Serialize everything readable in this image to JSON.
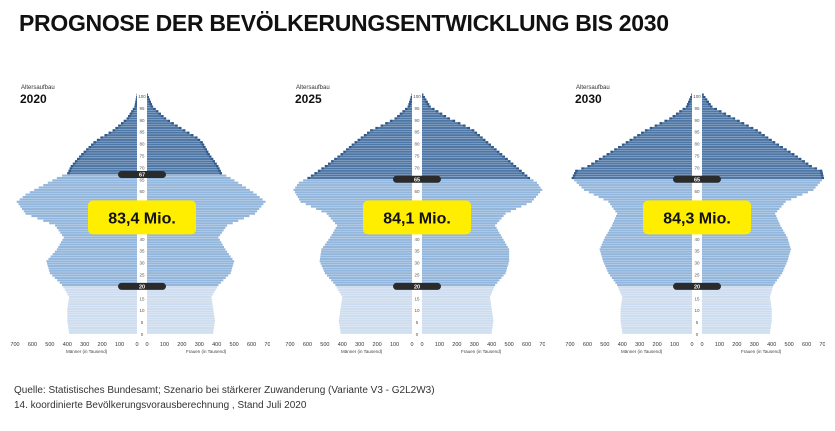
{
  "title": "PROGNOSE DER BEVÖLKERUNGSENTWICKLUNG BIS 2030",
  "source_lines": [
    "Quelle: Statistisches Bundesamt; Szenario bei stärkerer Zuwanderung (Variante V3 - G2L2W3)",
    "14. koordinierte Bevölkerungsvorausberechnung , Stand Juli 2020"
  ],
  "colors": {
    "dark_band": "#4f77a6",
    "dark_band_edge": "#2f5788",
    "mid_band": "#93b6dc",
    "light_band": "#cddcee",
    "axis_strip": "#ffffff",
    "badge_bg": "#ffee00",
    "marker_bg": "#2b2b2b"
  },
  "chart_data": [
    {
      "type": "population-pyramid",
      "year": "2020",
      "header_label": "Altersaufbau",
      "total_label": "83,4 Mio.",
      "age_ticks": [
        "100",
        "95",
        "90",
        "85",
        "80",
        "75",
        "70",
        "65",
        "60",
        "55",
        "50",
        "45",
        "40",
        "35",
        "30",
        "25",
        "20",
        "15",
        "10",
        "5",
        "0"
      ],
      "x_ticks": [
        "700",
        "600",
        "500",
        "400",
        "300",
        "200",
        "100",
        "0",
        "0",
        "100",
        "200",
        "300",
        "400",
        "500",
        "600",
        "700"
      ],
      "xlabel_left": "Männer (in Tausend)",
      "xlabel_right": "Frauen (in Tausend)",
      "markers": [
        "67",
        "20"
      ],
      "marker_ages": [
        67,
        20
      ],
      "xlim": [
        0,
        700
      ],
      "ages": [
        0,
        5,
        10,
        15,
        20,
        25,
        30,
        35,
        40,
        45,
        50,
        55,
        58,
        60,
        65,
        67,
        70,
        75,
        80,
        82,
        85,
        90,
        95,
        100
      ],
      "men": [
        390,
        400,
        400,
        390,
        430,
        500,
        520,
        460,
        420,
        470,
        640,
        690,
        640,
        590,
        460,
        400,
        380,
        320,
        250,
        210,
        140,
        60,
        15,
        2
      ],
      "women": [
        380,
        390,
        380,
        370,
        410,
        480,
        500,
        450,
        410,
        460,
        620,
        680,
        630,
        590,
        480,
        430,
        410,
        360,
        320,
        290,
        220,
        110,
        35,
        5
      ]
    },
    {
      "type": "population-pyramid",
      "year": "2025",
      "header_label": "Altersaufbau",
      "total_label": "84,1 Mio.",
      "age_ticks": [
        "100",
        "95",
        "90",
        "85",
        "80",
        "75",
        "70",
        "65",
        "60",
        "55",
        "50",
        "45",
        "40",
        "35",
        "30",
        "25",
        "20",
        "15",
        "10",
        "5",
        "0"
      ],
      "x_ticks": [
        "700",
        "600",
        "500",
        "400",
        "300",
        "200",
        "100",
        "0",
        "0",
        "100",
        "200",
        "300",
        "400",
        "500",
        "600",
        "700"
      ],
      "xlabel_left": "Männer (in Tausend)",
      "xlabel_right": "Frauen (in Tausend)",
      "markers": [
        "65",
        "20"
      ],
      "marker_ages": [
        65,
        20
      ],
      "xlim": [
        0,
        700
      ],
      "ages": [
        0,
        5,
        10,
        15,
        20,
        25,
        30,
        35,
        40,
        45,
        50,
        55,
        60,
        63,
        65,
        70,
        75,
        80,
        85,
        87,
        90,
        95,
        100
      ],
      "men": [
        410,
        420,
        410,
        400,
        440,
        500,
        530,
        520,
        470,
        430,
        490,
        640,
        680,
        650,
        600,
        500,
        410,
        330,
        240,
        180,
        100,
        25,
        3
      ],
      "women": [
        400,
        410,
        400,
        390,
        420,
        480,
        500,
        500,
        460,
        420,
        480,
        630,
        690,
        660,
        620,
        540,
        460,
        380,
        300,
        250,
        160,
        50,
        8
      ]
    },
    {
      "type": "population-pyramid",
      "year": "2030",
      "header_label": "Altersaufbau",
      "total_label": "84,3 Mio.",
      "age_ticks": [
        "100",
        "95",
        "90",
        "85",
        "80",
        "75",
        "70",
        "65",
        "60",
        "55",
        "50",
        "45",
        "40",
        "35",
        "30",
        "25",
        "20",
        "15",
        "10",
        "5",
        "0"
      ],
      "x_ticks": [
        "700",
        "600",
        "500",
        "400",
        "300",
        "200",
        "100",
        "0",
        "0",
        "100",
        "200",
        "300",
        "400",
        "500",
        "600",
        "700"
      ],
      "xlabel_left": "Männer (in Tausend)",
      "xlabel_right": "Frauen (in Tausend)",
      "markers": [
        "65",
        "20"
      ],
      "marker_ages": [
        65,
        20
      ],
      "xlim": [
        0,
        700
      ],
      "ages": [
        0,
        5,
        10,
        15,
        20,
        25,
        30,
        35,
        40,
        45,
        50,
        55,
        60,
        65,
        68,
        70,
        75,
        80,
        85,
        90,
        95,
        100
      ],
      "men": [
        400,
        410,
        410,
        400,
        430,
        480,
        510,
        530,
        500,
        460,
        430,
        480,
        620,
        690,
        670,
        600,
        490,
        380,
        270,
        130,
        35,
        4
      ],
      "women": [
        390,
        400,
        400,
        390,
        410,
        460,
        490,
        510,
        490,
        450,
        420,
        480,
        640,
        700,
        690,
        630,
        530,
        420,
        320,
        190,
        60,
        10
      ]
    }
  ]
}
